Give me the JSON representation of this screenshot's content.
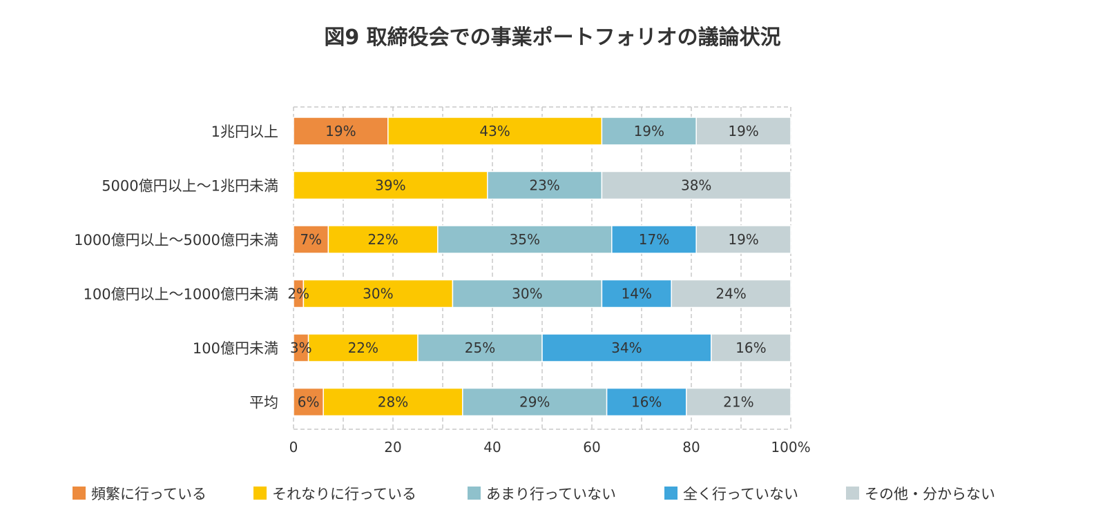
{
  "chart_data": {
    "type": "bar",
    "orientation": "horizontal",
    "stacked": true,
    "title": "図9 取締役会での事業ポートフォリオの議論状況",
    "categories": [
      "1兆円以上",
      "5000億円以上～1兆円未満",
      "1000億円以上～5000億円未満",
      "100億円以上～1000億円未満",
      "100億円未満",
      "平均"
    ],
    "series": [
      {
        "name": "頻繁に行っている",
        "color": "#ed8b3e",
        "values": [
          19,
          0,
          7,
          2,
          3,
          6
        ],
        "labels": [
          "19%",
          "",
          "7%",
          "2%",
          "3%",
          "6%"
        ]
      },
      {
        "name": "それなりに行っている",
        "color": "#fcc700",
        "values": [
          43,
          39,
          22,
          30,
          22,
          28
        ],
        "labels": [
          "43%",
          "39%",
          "22%",
          "30%",
          "22%",
          "28%"
        ]
      },
      {
        "name": "あまり行っていない",
        "color": "#8fc1cc",
        "values": [
          19,
          23,
          35,
          30,
          25,
          29
        ],
        "labels": [
          "19%",
          "23%",
          "35%",
          "30%",
          "25%",
          "29%"
        ]
      },
      {
        "name": "全く行っていない",
        "color": "#3fa6dc",
        "values": [
          0,
          0,
          17,
          14,
          34,
          16
        ],
        "labels": [
          "",
          "",
          "17%",
          "14%",
          "34%",
          "16%"
        ]
      },
      {
        "name": "その他・分からない",
        "color": "#c5d2d5",
        "values": [
          19,
          38,
          19,
          24,
          16,
          21
        ],
        "labels": [
          "19%",
          "38%",
          "19%",
          "24%",
          "16%",
          "21%"
        ]
      }
    ],
    "xlim": [
      0,
      100
    ],
    "xticks": [
      0,
      20,
      40,
      60,
      80,
      100
    ],
    "xtick_labels": [
      "0",
      "20",
      "40",
      "60",
      "80",
      "100%"
    ],
    "grid": true,
    "legend_position": "bottom"
  }
}
